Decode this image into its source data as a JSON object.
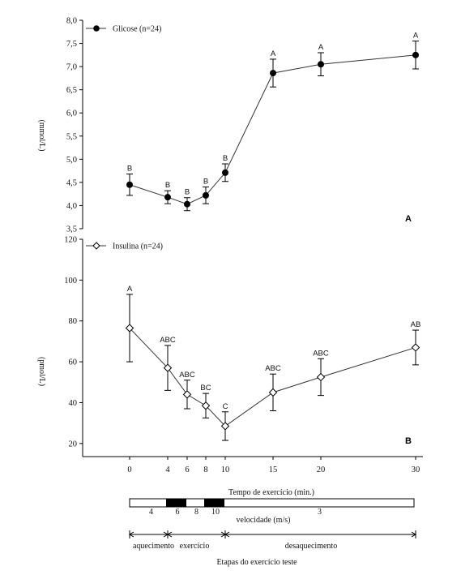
{
  "chart_data": [
    {
      "type": "line",
      "panel_label": "A",
      "ylabel": "(mmol/L)",
      "ylim": [
        3.5,
        8.0
      ],
      "yticks": [
        "3,5",
        "4,0",
        "4,5",
        "5,0",
        "5,5",
        "6,0",
        "6,5",
        "7,0",
        "7,5",
        "8,0"
      ],
      "marker": "filled-circle",
      "series": [
        {
          "name": "Glicose (n=24)",
          "x": [
            0,
            4,
            6,
            8,
            10,
            15,
            20,
            30
          ],
          "values": [
            4.45,
            4.18,
            4.03,
            4.22,
            4.71,
            6.86,
            7.05,
            7.25
          ],
          "error": [
            0.23,
            0.14,
            0.14,
            0.18,
            0.19,
            0.3,
            0.25,
            0.3
          ],
          "labels": [
            "B",
            "B",
            "B",
            "B",
            "B",
            "A",
            "A",
            "A"
          ]
        }
      ]
    },
    {
      "type": "line",
      "panel_label": "B",
      "ylabel": "(pmol/L)",
      "ylim": [
        10,
        120
      ],
      "yticks": [
        "20",
        "40",
        "60",
        "80",
        "100",
        "120"
      ],
      "marker": "open-diamond",
      "series": [
        {
          "name": "Insulina (n=24)",
          "x": [
            0,
            4,
            6,
            8,
            10,
            15,
            20,
            30
          ],
          "values": [
            76.5,
            57.0,
            44.0,
            38.5,
            28.5,
            45.0,
            52.5,
            67.0
          ],
          "error": [
            16.5,
            11.0,
            7.0,
            6.0,
            7.0,
            9.0,
            9.0,
            8.5
          ],
          "labels": [
            "A",
            "ABC",
            "ABC",
            "BC",
            "C",
            "ABC",
            "ABC",
            "AB"
          ]
        }
      ]
    }
  ],
  "x_axis": {
    "ticks": [
      "0",
      "4",
      "6",
      "8",
      "10",
      "15",
      "20",
      "30"
    ],
    "xlabel": "Tempo de exercício (min.)"
  },
  "velocity_bar": {
    "segments": [
      {
        "label": "4",
        "from": 0,
        "to": 4,
        "filled": false
      },
      {
        "label": "6",
        "from": 4,
        "to": 6,
        "filled": true
      },
      {
        "label": "8",
        "from": 6,
        "to": 8,
        "filled": false
      },
      {
        "label": "10",
        "from": 8,
        "to": 10,
        "filled": true
      },
      {
        "label": "3",
        "from": 10,
        "to": 30,
        "filled": false
      }
    ],
    "caption": "velocidade (m/s)"
  },
  "stages": {
    "items": [
      {
        "label": "aquecimento",
        "from": 0,
        "to": 4
      },
      {
        "label": "exercício",
        "from": 4,
        "to": 10
      },
      {
        "label": "desaquecimento",
        "from": 10,
        "to": 30
      }
    ],
    "caption": "Etapas do exercício teste"
  },
  "colors": {
    "line": "#333333",
    "marker_fill": "#000000",
    "bar_fill": "#000000"
  }
}
